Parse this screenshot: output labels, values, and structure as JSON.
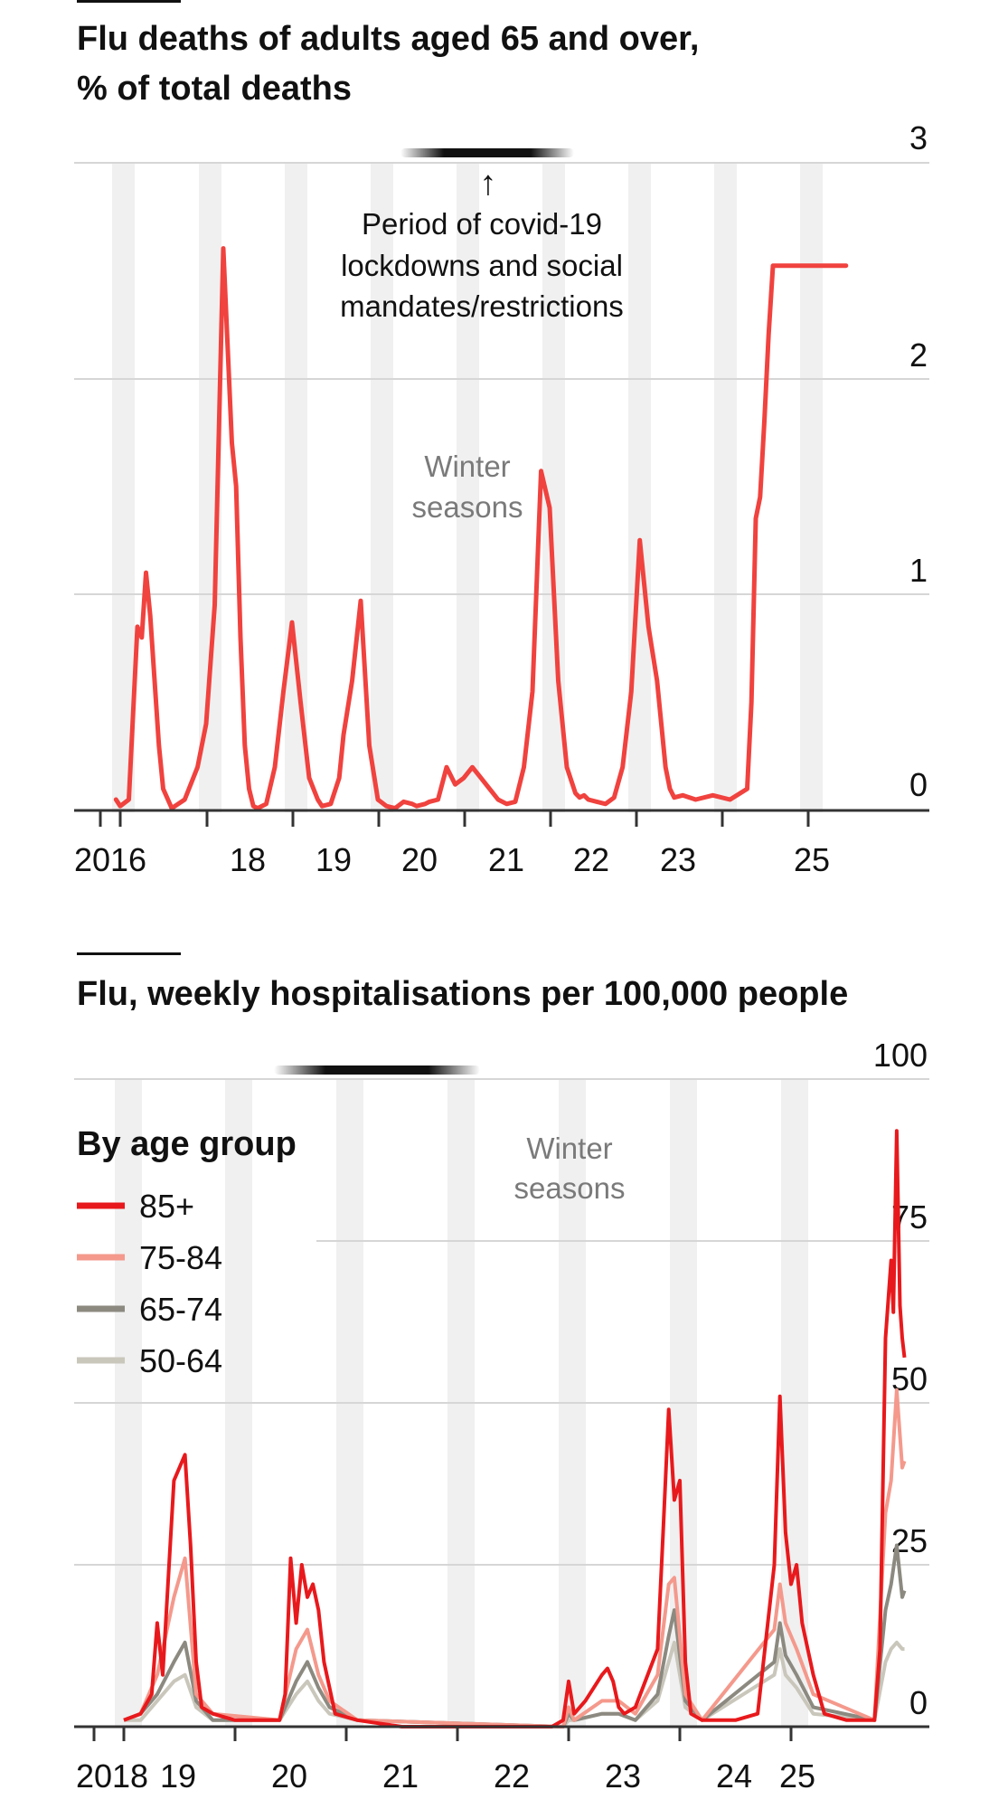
{
  "colors": {
    "series_primary": "#e8191c",
    "series_75_84": "#f4998c",
    "series_65_74": "#8c8a80",
    "series_50_64": "#c9c6bb",
    "season_band": "#f0f0f0",
    "gridline": "#d6d6d6"
  },
  "chart_data": [
    {
      "type": "line",
      "title": "Flu deaths of adults aged 65 and over,",
      "subtitle": "% of total deaths",
      "y_ticks": [
        "3",
        "2",
        "1",
        "0"
      ],
      "ylim": [
        0,
        3
      ],
      "x_tick_labels": [
        "2016",
        "18",
        "19",
        "20",
        "21",
        "22",
        "23",
        "25"
      ],
      "annotation": {
        "line1": "Period of covid-19",
        "line2": "lockdowns and social",
        "line3": "mandates/restrictions",
        "arrow": "↑"
      },
      "winter_label": {
        "line1": "Winter",
        "line2": "seasons"
      },
      "grid": true,
      "series": [
        {
          "x": [
            2015.95,
            2016.0,
            2016.1,
            2016.2,
            2016.25,
            2016.3,
            2016.35,
            2016.4,
            2016.45,
            2016.5,
            2016.6,
            2016.75,
            2016.9,
            2017.0,
            2017.1,
            2017.2,
            2017.3,
            2017.35,
            2017.4,
            2017.45,
            2017.5,
            2017.55,
            2017.6,
            2017.7,
            2017.8,
            2017.9,
            2018.0,
            2018.1,
            2018.2,
            2018.3,
            2018.35,
            2018.45,
            2018.55,
            2018.6,
            2018.7,
            2018.8,
            2018.9,
            2019.0,
            2019.1,
            2019.2,
            2019.3,
            2019.4,
            2019.45,
            2019.55,
            2019.6,
            2019.7,
            2019.8,
            2019.9,
            2020.0,
            2020.1,
            2020.2,
            2020.3,
            2020.4,
            2020.5,
            2020.6,
            2020.7,
            2020.8,
            2020.9,
            2021.0,
            2021.1,
            2021.2,
            2021.3,
            2021.35,
            2021.4,
            2021.45,
            2021.55,
            2021.65,
            2021.75,
            2021.85,
            2021.95,
            2022.05,
            2022.15,
            2022.25,
            2022.3,
            2022.35,
            2022.4,
            2022.45,
            2022.55,
            2022.7,
            2022.9,
            2023.1,
            2023.3,
            2023.35,
            2023.4,
            2023.45,
            2023.5,
            2023.55,
            2023.6,
            2023.7,
            2023.8,
            2023.95,
            2024.1,
            2024.2,
            2024.25,
            2024.3,
            2024.35,
            2024.38,
            2024.42,
            2024.45
          ],
          "y": [
            0.05,
            0.02,
            0.05,
            0.85,
            0.8,
            1.1,
            0.9,
            0.6,
            0.3,
            0.1,
            0.01,
            0.05,
            0.2,
            0.4,
            0.95,
            2.6,
            1.7,
            1.5,
            0.8,
            0.3,
            0.1,
            0.02,
            0.01,
            0.03,
            0.2,
            0.55,
            0.87,
            0.5,
            0.15,
            0.05,
            0.02,
            0.03,
            0.15,
            0.35,
            0.6,
            0.97,
            0.3,
            0.05,
            0.02,
            0.01,
            0.04,
            0.03,
            0.02,
            0.03,
            0.04,
            0.05,
            0.2,
            0.12,
            0.15,
            0.2,
            0.15,
            0.1,
            0.05,
            0.03,
            0.04,
            0.2,
            0.55,
            1.57,
            1.4,
            0.6,
            0.2,
            0.08,
            0.06,
            0.07,
            0.05,
            0.04,
            0.03,
            0.06,
            0.2,
            0.55,
            1.25,
            0.85,
            0.6,
            0.4,
            0.2,
            0.1,
            0.06,
            0.07,
            0.05,
            0.07,
            0.05,
            0.1,
            0.5,
            1.35,
            1.45,
            1.8,
            2.2,
            2.52,
            2.52,
            2.52,
            2.52,
            2.52,
            2.52,
            2.52,
            2.52,
            2.52,
            2.52,
            2.52,
            2.52
          ]
        }
      ]
    },
    {
      "type": "line",
      "title": "Flu, weekly hospitalisations per 100,000 people",
      "y_ticks": [
        "100",
        "75",
        "50",
        "25",
        "0"
      ],
      "ylim": [
        0,
        100
      ],
      "x_tick_labels": [
        "2018",
        "19",
        "20",
        "21",
        "22",
        "23",
        "24",
        "25"
      ],
      "winter_label": {
        "line1": "Winter",
        "line2": "seasons"
      },
      "legend": {
        "title": "By age group",
        "entries": [
          "85+",
          "75-84",
          "65-74",
          "50-64"
        ]
      },
      "grid": true,
      "series": [
        {
          "name": "85+",
          "x": [
            2018.0,
            2018.15,
            2018.25,
            2018.3,
            2018.35,
            2018.45,
            2018.55,
            2018.6,
            2018.65,
            2018.7,
            2018.8,
            2019.0,
            2019.2,
            2019.4,
            2019.45,
            2019.5,
            2019.55,
            2019.6,
            2019.65,
            2019.7,
            2019.75,
            2019.8,
            2019.9,
            2020.1,
            2020.5,
            2020.9,
            2021.2,
            2021.5,
            2021.85,
            2021.95,
            2022.0,
            2022.05,
            2022.15,
            2022.3,
            2022.35,
            2022.4,
            2022.45,
            2022.5,
            2022.6,
            2022.8,
            2022.85,
            2022.9,
            2022.95,
            2023.0,
            2023.05,
            2023.1,
            2023.2,
            2023.3,
            2023.5,
            2023.7,
            2023.85,
            2023.9,
            2023.95,
            2024.0,
            2024.05,
            2024.1,
            2024.2,
            2024.3,
            2024.5,
            2024.75,
            2024.8,
            2024.85,
            2024.9,
            2024.92,
            2024.95,
            2024.98,
            2025.0,
            2025.02
          ],
          "y": [
            1,
            2,
            5,
            16,
            8,
            38,
            42,
            28,
            10,
            3,
            2,
            1,
            1,
            1,
            5,
            26,
            16,
            25,
            20,
            22,
            18,
            10,
            2,
            1,
            0,
            0,
            0,
            0,
            0,
            1,
            7,
            2,
            4,
            8,
            9,
            7,
            3,
            2,
            3,
            12,
            30,
            49,
            35,
            38,
            10,
            2,
            1,
            1,
            1,
            2,
            25,
            51,
            30,
            22,
            25,
            16,
            8,
            2,
            1,
            1,
            12,
            60,
            72,
            64,
            92,
            65,
            60,
            57
          ]
        },
        {
          "name": "75-84",
          "x": [
            2018.0,
            2018.15,
            2018.3,
            2018.45,
            2018.55,
            2018.65,
            2018.8,
            2019.4,
            2019.55,
            2019.65,
            2019.75,
            2019.85,
            2020.1,
            2021.95,
            2022.0,
            2022.05,
            2022.3,
            2022.45,
            2022.6,
            2022.8,
            2022.9,
            2022.95,
            2023.05,
            2023.2,
            2023.85,
            2023.9,
            2023.95,
            2024.05,
            2024.2,
            2024.75,
            2024.85,
            2024.9,
            2024.95,
            2025.0,
            2025.02
          ],
          "y": [
            1,
            2,
            8,
            20,
            26,
            5,
            2,
            1,
            12,
            15,
            8,
            4,
            1,
            0,
            3,
            1,
            4,
            4,
            2,
            8,
            22,
            23,
            5,
            1,
            15,
            22,
            16,
            12,
            5,
            1,
            33,
            38,
            52,
            40,
            41
          ]
        },
        {
          "name": "65-74",
          "x": [
            2018.0,
            2018.15,
            2018.3,
            2018.45,
            2018.55,
            2018.65,
            2018.8,
            2019.4,
            2019.55,
            2019.65,
            2019.75,
            2019.85,
            2020.1,
            2021.95,
            2022.0,
            2022.05,
            2022.3,
            2022.45,
            2022.6,
            2022.8,
            2022.9,
            2022.95,
            2023.05,
            2023.2,
            2023.85,
            2023.9,
            2023.95,
            2024.05,
            2024.2,
            2024.75,
            2024.85,
            2024.9,
            2024.95,
            2025.0,
            2025.02
          ],
          "y": [
            1,
            2,
            5,
            10,
            13,
            4,
            1,
            1,
            7,
            10,
            6,
            3,
            1,
            0,
            2,
            1,
            2,
            2,
            1,
            5,
            14,
            18,
            4,
            1,
            10,
            16,
            11,
            8,
            3,
            1,
            18,
            22,
            28,
            20,
            21
          ]
        },
        {
          "name": "50-64",
          "x": [
            2018.0,
            2018.15,
            2018.3,
            2018.45,
            2018.55,
            2018.65,
            2018.8,
            2019.4,
            2019.55,
            2019.65,
            2019.75,
            2019.85,
            2020.1,
            2021.95,
            2022.0,
            2022.05,
            2022.3,
            2022.45,
            2022.6,
            2022.8,
            2022.9,
            2022.95,
            2023.05,
            2023.2,
            2023.85,
            2023.9,
            2023.95,
            2024.05,
            2024.2,
            2024.75,
            2024.85,
            2024.9,
            2024.95,
            2025.0,
            2025.02
          ],
          "y": [
            1,
            1,
            4,
            7,
            8,
            3,
            1,
            1,
            5,
            7,
            4,
            2,
            1,
            0,
            1,
            1,
            2,
            2,
            1,
            4,
            10,
            13,
            3,
            1,
            8,
            12,
            8,
            6,
            2,
            1,
            10,
            12,
            13,
            12,
            12
          ]
        }
      ]
    }
  ]
}
